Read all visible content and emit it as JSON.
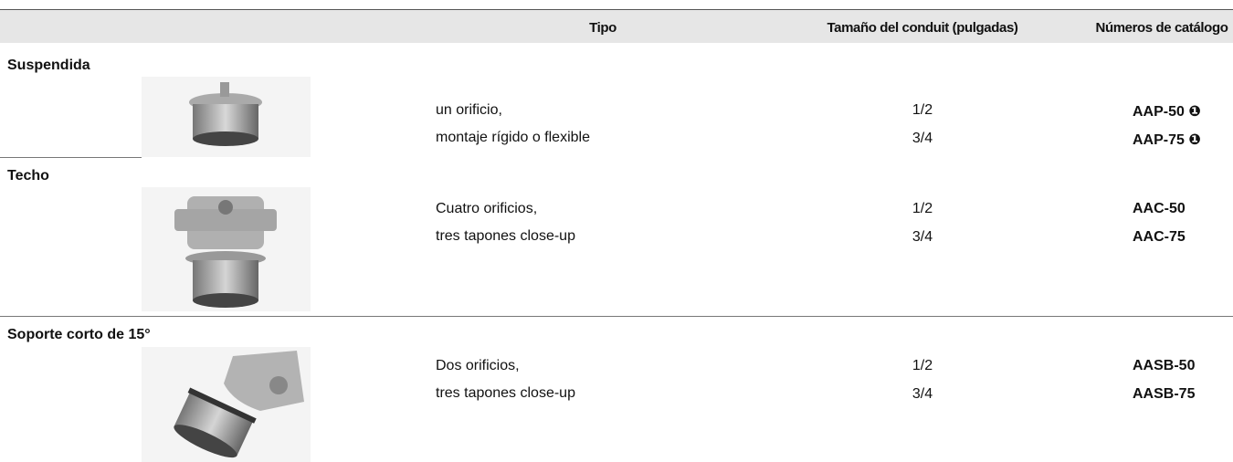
{
  "header": {
    "columns": [
      "Tipo",
      "Tamaño del conduit (pulgadas)",
      "Números de catálogo"
    ]
  },
  "sections": [
    {
      "title": "Suspendida",
      "description": [
        "un orificio,",
        "montaje rígido o flexible"
      ],
      "sizes": [
        "1/2",
        "3/4"
      ],
      "catalog": [
        "AAP-50 ❶",
        "AAP-75 ❶"
      ]
    },
    {
      "title": "Techo",
      "description": [
        "Cuatro orificios,",
        "tres tapones close-up"
      ],
      "sizes": [
        "1/2",
        "3/4"
      ],
      "catalog": [
        "AAC-50",
        "AAC-75"
      ]
    },
    {
      "title": "Soporte corto de 15°",
      "description": [
        "Dos orificios,",
        "tres tapones close-up"
      ],
      "sizes": [
        "1/2",
        "3/4"
      ],
      "catalog": [
        "AASB-50",
        "AASB-75"
      ]
    }
  ]
}
